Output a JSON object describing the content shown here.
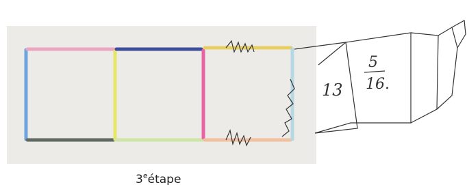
{
  "caption": {
    "number": "3",
    "suffix": "e",
    "word": "étape"
  },
  "handwriting": {
    "first_box": "13",
    "second_box_top": "5",
    "second_box_bottom": "16."
  }
}
